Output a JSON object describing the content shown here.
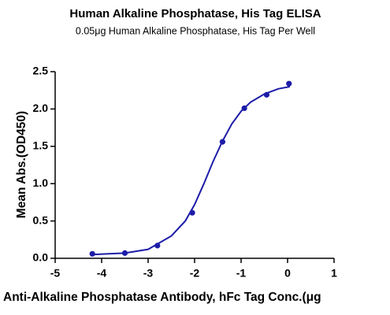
{
  "chart_data": {
    "type": "scatter",
    "title": "Human Alkaline Phosphatase, His Tag ELISA",
    "subtitle": "0.05μg Human Alkaline Phosphatase, His Tag Per Well",
    "x_label": "Anti-Alkaline Phosphatase Antibody, hFc Tag Conc.(μg",
    "y_label": "Mean Abs.(OD450)",
    "xlim": [
      -5,
      1
    ],
    "xticks": [
      -5,
      -4,
      -3,
      -2,
      -1,
      0,
      1
    ],
    "ylim": [
      0,
      2.5
    ],
    "yticks": [
      {
        "value": 0,
        "label": "0.0"
      },
      0.5,
      {
        "value": 1,
        "label": "1.0"
      },
      1.5,
      {
        "value": 2,
        "label": "2.0"
      },
      2.5
    ],
    "color": "#1c1ca8",
    "series": [
      {
        "x": [
          -4.2,
          -3.5,
          -2.8,
          -2.05,
          -1.4,
          -0.93,
          -0.45,
          0.03
        ],
        "values": [
          0.06,
          0.07,
          0.17,
          0.61,
          1.56,
          2.01,
          2.19,
          2.34
        ],
        "color": "#1c1ca8"
      },
      {
        "line": true,
        "x": [
          -4.2,
          -3.5,
          -3,
          -2.5,
          -2.2,
          -2,
          -1.8,
          -1.6,
          -1.4,
          -1.2,
          -1,
          -0.8,
          -0.5,
          -0.2,
          0.05
        ],
        "values": [
          0.05,
          0.07,
          0.12,
          0.3,
          0.5,
          0.72,
          1.0,
          1.3,
          1.57,
          1.8,
          1.97,
          2.09,
          2.2,
          2.27,
          2.3
        ],
        "color": "#1c1ca8"
      }
    ]
  }
}
